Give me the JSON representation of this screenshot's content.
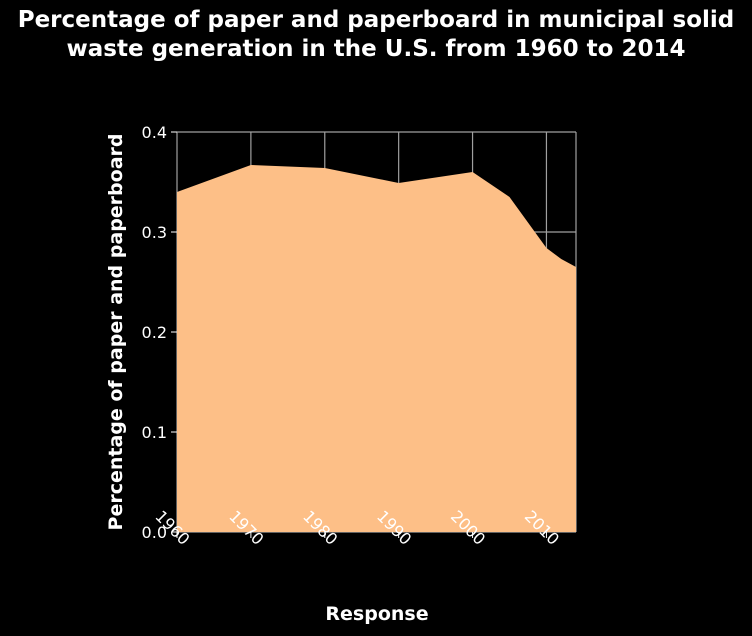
{
  "chart_data": {
    "type": "area",
    "title": "Percentage of paper and paperboard in municipal solid waste generation in the U.S. from 1960 to 2014",
    "xlabel": "Response",
    "ylabel": "Percentage of paper and paperboard",
    "x": [
      1960,
      1970,
      1980,
      1990,
      2000,
      2005,
      2010,
      2012,
      2014
    ],
    "values": [
      0.34,
      0.367,
      0.364,
      0.349,
      0.36,
      0.335,
      0.284,
      0.273,
      0.265
    ],
    "xlim": [
      1960,
      2014
    ],
    "ylim": [
      0,
      0.4
    ],
    "xticks": [
      "1960",
      "1970",
      "1980",
      "1990",
      "2000",
      "2010"
    ],
    "yticks": [
      "0.0",
      "0.1",
      "0.2",
      "0.3",
      "0.4"
    ],
    "grid": true,
    "colors": {
      "fill": "#fdbf87",
      "background": "#000000",
      "grid": "#a0a0a0",
      "text": "#ffffff"
    }
  }
}
